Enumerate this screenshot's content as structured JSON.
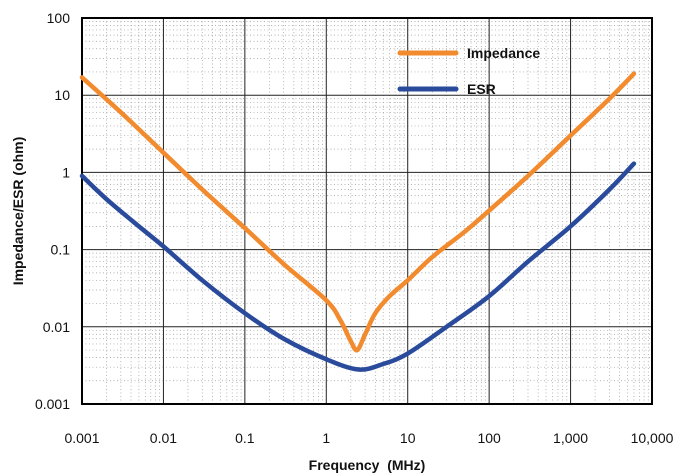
{
  "chart_data": {
    "type": "line",
    "xscale": "log",
    "yscale": "log",
    "xlim": [
      0.001,
      10000
    ],
    "ylim": [
      0.001,
      100
    ],
    "x_ticks": [
      "0.001",
      "0.01",
      "0.1",
      "1",
      "10",
      "100",
      "1,000",
      "10,000"
    ],
    "y_ticks": [
      "100",
      "10",
      "1",
      "0.1",
      "0.01",
      "0.001"
    ],
    "xlabel": "Frequency  (MHz)",
    "ylabel": "Impedance/ESR (ohm)",
    "grid": true,
    "legend_position": "top-right",
    "series": [
      {
        "name": "Impedance",
        "color": "#f28a2e",
        "points": [
          [
            0.001,
            17
          ],
          [
            0.003,
            6
          ],
          [
            0.01,
            1.8
          ],
          [
            0.03,
            0.6
          ],
          [
            0.1,
            0.19
          ],
          [
            0.3,
            0.065
          ],
          [
            1,
            0.022
          ],
          [
            1.5,
            0.012
          ],
          [
            2,
            0.0065
          ],
          [
            2.4,
            0.005
          ],
          [
            3,
            0.008
          ],
          [
            4,
            0.015
          ],
          [
            6,
            0.025
          ],
          [
            10,
            0.04
          ],
          [
            20,
            0.08
          ],
          [
            50,
            0.17
          ],
          [
            100,
            0.32
          ],
          [
            300,
            0.9
          ],
          [
            1000,
            3
          ],
          [
            3000,
            9
          ],
          [
            6000,
            19
          ]
        ]
      },
      {
        "name": "ESR",
        "color": "#2a4b9c",
        "points": [
          [
            0.001,
            0.9
          ],
          [
            0.002,
            0.45
          ],
          [
            0.005,
            0.2
          ],
          [
            0.01,
            0.11
          ],
          [
            0.03,
            0.04
          ],
          [
            0.1,
            0.015
          ],
          [
            0.3,
            0.007
          ],
          [
            1,
            0.0038
          ],
          [
            2.5,
            0.0028
          ],
          [
            5,
            0.0033
          ],
          [
            10,
            0.0045
          ],
          [
            30,
            0.01
          ],
          [
            100,
            0.025
          ],
          [
            300,
            0.07
          ],
          [
            1000,
            0.2
          ],
          [
            3000,
            0.6
          ],
          [
            6000,
            1.3
          ]
        ]
      }
    ]
  }
}
